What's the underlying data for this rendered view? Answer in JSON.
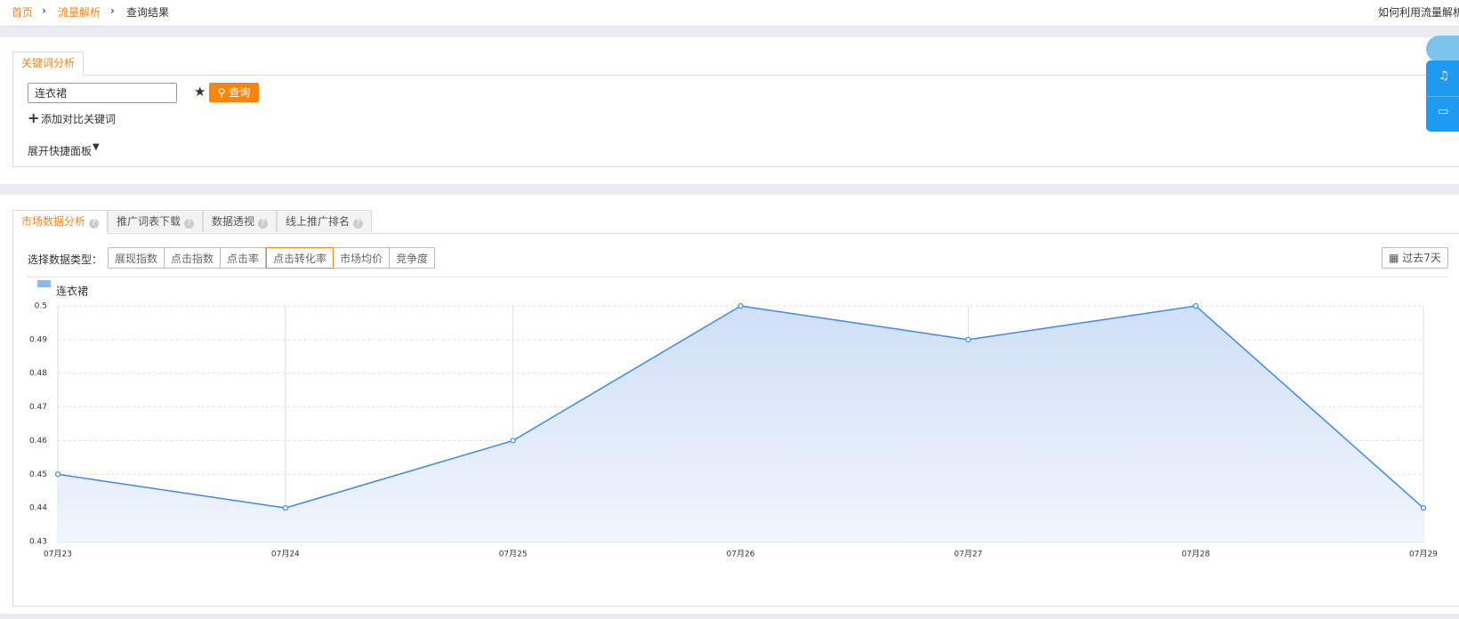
{
  "breadcrumb": [
    "首页",
    "流量解析",
    "查询结果"
  ],
  "help_link": "如何利用流量解析",
  "keyword_panel": {
    "tab": "关键词分析",
    "input": "连衣裙",
    "search_button": "查询",
    "add_compare": "添加对比关键词",
    "expand": "展开快捷面板"
  },
  "market_panel": {
    "tabs": [
      "市场数据分析",
      "推广词表下载",
      "数据透视",
      "线上推广排名"
    ],
    "data_type_label": "选择数据类型：",
    "data_types": [
      "展现指数",
      "点击指数",
      "点击率",
      "点击转化率",
      "市场均价",
      "竞争度"
    ],
    "date_range": "过去7天"
  },
  "chart_data": {
    "type": "line",
    "categories": [
      "07月23",
      "07月24",
      "07月25",
      "07月26",
      "07月27",
      "07月28",
      "07月29"
    ],
    "series": [
      {
        "name": "连衣裙",
        "color": "#3c8ae6",
        "values": [
          0.45,
          0.44,
          0.46,
          0.5,
          0.49,
          0.5,
          0.44
        ]
      }
    ],
    "ylim": [
      0.43,
      0.5
    ],
    "yticks": [
      0.43,
      0.44,
      0.45,
      0.46,
      0.47,
      0.48,
      0.49,
      0.5
    ],
    "grid": true
  }
}
